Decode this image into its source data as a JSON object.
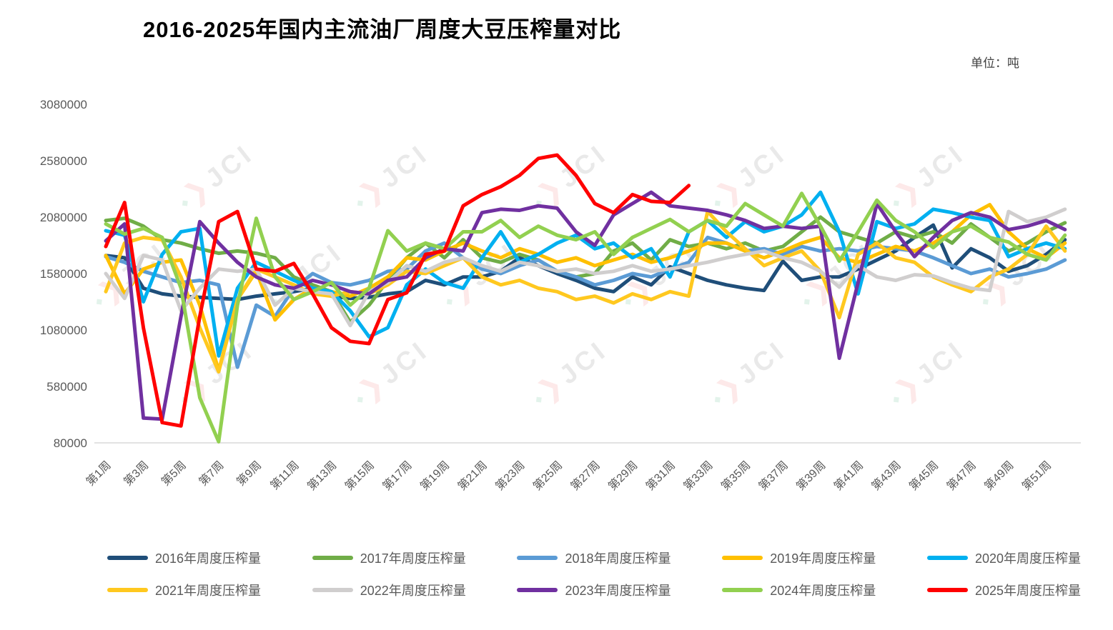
{
  "title": "2016-2025年国内主流油厂周度大豆压榨量对比",
  "unit_label": "单位：吨",
  "watermark": {
    "text": "JCI"
  },
  "chart_data": {
    "type": "line",
    "title": "2016-2025年国内主流油厂周度大豆压榨量对比",
    "unit": "吨",
    "grid": false,
    "legend_position": "bottom",
    "ylim": [
      80000,
      3080000
    ],
    "y_tick_labels": [
      "3080000",
      "2580000",
      "2080000",
      "1580000",
      "1080000",
      "580000",
      "80000"
    ],
    "x_tick_labels": [
      "第1周",
      "第3周",
      "第5周",
      "第7周",
      "第9周",
      "第11周",
      "第13周",
      "第15周",
      "第17周",
      "第19周",
      "第21周",
      "第23周",
      "第25周",
      "第27周",
      "第29周",
      "第31周",
      "第33周",
      "第35周",
      "第37周",
      "第39周",
      "第41周",
      "第43周",
      "第45周",
      "第47周",
      "第49周",
      "第51周"
    ],
    "weeks": 52,
    "axis_label_color": "#595959",
    "axis_line_color": "#D9D9D9",
    "series": [
      {
        "name": "2016年周度压榨量",
        "color": "#1F4E79",
        "values": [
          1740000,
          1720000,
          1450000,
          1400000,
          1380000,
          1370000,
          1360000,
          1350000,
          1380000,
          1400000,
          1420000,
          1450000,
          1380000,
          1360000,
          1370000,
          1400000,
          1420000,
          1520000,
          1480000,
          1550000,
          1550000,
          1600000,
          1720000,
          1650000,
          1580000,
          1520000,
          1450000,
          1420000,
          1550000,
          1480000,
          1640000,
          1580000,
          1520000,
          1480000,
          1450000,
          1430000,
          1690000,
          1520000,
          1550000,
          1550000,
          1620000,
          1700000,
          1780000,
          1900000,
          2010000,
          1630000,
          1800000,
          1720000,
          1600000,
          1650000,
          1750000,
          1880000
        ]
      },
      {
        "name": "2017年周度压榨量",
        "color": "#70AD47",
        "values": [
          2050000,
          2070000,
          2000000,
          1880000,
          1850000,
          1800000,
          1760000,
          1780000,
          1760000,
          1720000,
          1550000,
          1480000,
          1420000,
          1150000,
          1300000,
          1520000,
          1720000,
          1850000,
          1720000,
          1880000,
          1720000,
          1680000,
          1750000,
          1700000,
          1600000,
          1550000,
          1580000,
          1780000,
          1850000,
          1700000,
          1880000,
          1820000,
          1850000,
          1800000,
          1850000,
          1780000,
          1820000,
          1950000,
          2080000,
          1950000,
          1900000,
          1850000,
          1950000,
          1900000,
          1950000,
          1850000,
          2020000,
          1900000,
          1780000,
          1850000,
          1950000,
          2030000
        ]
      },
      {
        "name": "2018年周度压榨量",
        "color": "#5B9BD5",
        "values": [
          1730000,
          1680000,
          1600000,
          1550000,
          1500000,
          1520000,
          1480000,
          750000,
          1300000,
          1200000,
          1450000,
          1580000,
          1500000,
          1480000,
          1520000,
          1600000,
          1620000,
          1780000,
          1850000,
          1720000,
          1620000,
          1580000,
          1650000,
          1700000,
          1600000,
          1550000,
          1480000,
          1520000,
          1580000,
          1550000,
          1620000,
          1680000,
          1900000,
          1850000,
          1780000,
          1800000,
          1750000,
          1820000,
          1780000,
          1800000,
          1780000,
          1820000,
          1800000,
          1780000,
          1720000,
          1650000,
          1580000,
          1620000,
          1550000,
          1580000,
          1620000,
          1700000
        ]
      },
      {
        "name": "2019年周度压榨量",
        "color": "#FFC000",
        "values": [
          1740000,
          1400000,
          1620000,
          1680000,
          1700000,
          1300000,
          720000,
          1350000,
          1600000,
          1170000,
          1350000,
          1450000,
          1420000,
          1380000,
          1450000,
          1550000,
          1720000,
          1700000,
          1780000,
          1850000,
          1780000,
          1720000,
          1800000,
          1750000,
          1680000,
          1720000,
          1650000,
          1700000,
          1750000,
          1680000,
          1720000,
          1780000,
          1850000,
          1850000,
          1780000,
          1720000,
          1780000,
          1850000,
          1900000,
          1720000,
          1680000,
          1750000,
          1820000,
          1780000,
          1850000,
          1950000,
          2100000,
          2190000,
          1950000,
          1800000,
          1720000,
          1850000
        ]
      },
      {
        "name": "2020年周度压榨量",
        "color": "#00B0F0",
        "values": [
          1960000,
          1920000,
          1330000,
          1750000,
          1950000,
          1980000,
          850000,
          1450000,
          1680000,
          1600000,
          1520000,
          1450000,
          1420000,
          1250000,
          1020000,
          1100000,
          1480000,
          1620000,
          1500000,
          1450000,
          1720000,
          1950000,
          1680000,
          1750000,
          1850000,
          1920000,
          1800000,
          1850000,
          1720000,
          1800000,
          1550000,
          1950000,
          2050000,
          1900000,
          2040000,
          1950000,
          2000000,
          2100000,
          2300000,
          1950000,
          1400000,
          2040000,
          1980000,
          2020000,
          2150000,
          2120000,
          2080000,
          2050000,
          1730000,
          1800000,
          1850000,
          1800000
        ]
      },
      {
        "name": "2021年周度压榨量",
        "color": "#FFC81F",
        "values": [
          1420000,
          1850000,
          1900000,
          1880000,
          1550000,
          1100000,
          710000,
          1350000,
          1620000,
          1550000,
          1480000,
          1400000,
          1380000,
          1420000,
          1400000,
          1480000,
          1600000,
          1580000,
          1650000,
          1720000,
          1550000,
          1480000,
          1520000,
          1450000,
          1420000,
          1350000,
          1380000,
          1320000,
          1400000,
          1350000,
          1420000,
          1380000,
          2130000,
          1950000,
          1800000,
          1650000,
          1720000,
          1780000,
          1600000,
          1190000,
          1750000,
          1850000,
          1720000,
          1680000,
          1550000,
          1480000,
          1420000,
          1550000,
          1620000,
          1750000,
          2000000,
          1780000
        ]
      },
      {
        "name": "2022年周度压榨量",
        "color": "#D0CECE",
        "values": [
          1580000,
          1360000,
          1740000,
          1700000,
          1250000,
          1450000,
          1620000,
          1600000,
          1620000,
          1300000,
          1450000,
          1420000,
          1400000,
          1120000,
          1420000,
          1500000,
          1650000,
          1600000,
          1680000,
          1720000,
          1650000,
          1600000,
          1680000,
          1650000,
          1600000,
          1620000,
          1580000,
          1600000,
          1650000,
          1600000,
          1620000,
          1650000,
          1680000,
          1720000,
          1750000,
          1780000,
          1720000,
          1680000,
          1600000,
          1460000,
          1650000,
          1550000,
          1520000,
          1570000,
          1560000,
          1500000,
          1450000,
          1430000,
          2130000,
          2040000,
          2080000,
          2150000
        ]
      },
      {
        "name": "2023年周度压榨量",
        "color": "#7030A0",
        "values": [
          1870000,
          2020000,
          300000,
          290000,
          1200000,
          2040000,
          1850000,
          1680000,
          1550000,
          1480000,
          1450000,
          1520000,
          1480000,
          1420000,
          1400000,
          1520000,
          1550000,
          1720000,
          1800000,
          1780000,
          2120000,
          2150000,
          2140000,
          2180000,
          2160000,
          1950000,
          1830000,
          2100000,
          2200000,
          2300000,
          2180000,
          2160000,
          2140000,
          2100000,
          2050000,
          1980000,
          2000000,
          1980000,
          2000000,
          830000,
          1500000,
          2200000,
          1950000,
          1730000,
          1900000,
          2050000,
          2120000,
          2080000,
          1970000,
          2000000,
          2050000,
          1970000
        ]
      },
      {
        "name": "2024年周度压榨量",
        "color": "#92D050",
        "values": [
          2020000,
          1930000,
          1980000,
          1900000,
          1450000,
          480000,
          90000,
          1300000,
          2070000,
          1550000,
          1350000,
          1420000,
          1500000,
          1300000,
          1450000,
          1960000,
          1780000,
          1850000,
          1800000,
          1950000,
          1950000,
          2050000,
          1900000,
          2000000,
          1920000,
          1880000,
          1950000,
          1750000,
          1900000,
          1980000,
          2060000,
          1950000,
          2050000,
          2000000,
          2200000,
          2100000,
          2000000,
          2290000,
          2000000,
          1690000,
          1950000,
          2230000,
          2050000,
          1950000,
          1810000,
          1950000,
          2000000,
          1900000,
          1860000,
          1750000,
          1700000,
          1920000
        ]
      },
      {
        "name": "2025年周度压榨量",
        "color": "#FF0000",
        "values": [
          1820000,
          2210000,
          1100000,
          260000,
          230000,
          1200000,
          2040000,
          2130000,
          1620000,
          1600000,
          1670000,
          1400000,
          1100000,
          980000,
          960000,
          1350000,
          1410000,
          1750000,
          1780000,
          2180000,
          2280000,
          2350000,
          2450000,
          2600000,
          2630000,
          2450000,
          2200000,
          2120000,
          2280000,
          2220000,
          2210000,
          2360000
        ]
      }
    ]
  }
}
